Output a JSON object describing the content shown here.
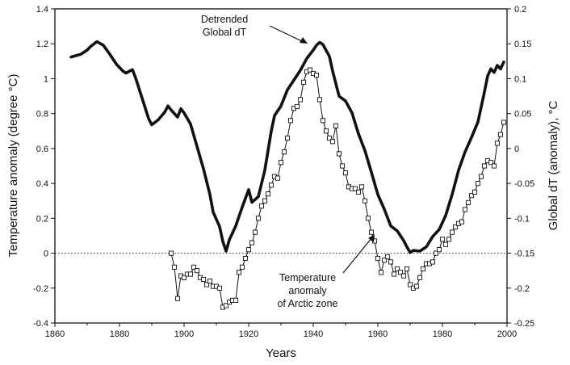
{
  "chart_data": {
    "type": "line",
    "xlabel": "Years",
    "ylabel_left": "Temperature anomaly (degree °C)",
    "ylabel_right": "Global dT (anomaly), °C",
    "xlim": [
      1860,
      2000
    ],
    "ylim_left": [
      -0.4,
      1.4
    ],
    "ylim_right": [
      -0.25,
      0.2
    ],
    "x_ticks": [
      "1860",
      "1880",
      "1900",
      "1920",
      "1940",
      "1960",
      "1980",
      "2000"
    ],
    "y_left_ticks": [
      "1.4",
      "1.2",
      "1",
      "0.8",
      "0.6",
      "0.4",
      "0.2",
      "0",
      "-0.2",
      "-0.4"
    ],
    "y_right_ticks": [
      "0.2",
      "0.15",
      "0.1",
      "0.05",
      "0",
      "-0.05",
      "-0.1",
      "-0.15",
      "-0.2",
      "-0.25"
    ],
    "reference_line": {
      "y": 0,
      "style": "dotted"
    },
    "grid": false,
    "colors": {
      "line": "#111111",
      "reference": "#333333",
      "background": "#ffffff"
    },
    "annotations": [
      {
        "text": [
          "Detrended",
          "Global dT"
        ],
        "points_to_series": 0
      },
      {
        "text": [
          "Temperature",
          "anomaly",
          "of Arctic zone"
        ],
        "points_to_series": 1
      }
    ],
    "series": [
      {
        "axis": "right",
        "style": "thick-line",
        "x": [
          1865,
          1868,
          1870,
          1871,
          1873,
          1875,
          1877,
          1879,
          1881,
          1882,
          1884,
          1885,
          1887,
          1889,
          1890,
          1892,
          1894,
          1895,
          1896,
          1898,
          1899,
          1900,
          1902,
          1904,
          1906,
          1908,
          1909,
          1911,
          1912,
          1913,
          1914,
          1916,
          1918,
          1920,
          1921,
          1923,
          1925,
          1927,
          1928,
          1930,
          1932,
          1934,
          1936,
          1938,
          1940,
          1941,
          1942,
          1943,
          1945,
          1946,
          1948,
          1950,
          1952,
          1954,
          1956,
          1958,
          1960,
          1962,
          1964,
          1966,
          1968,
          1969,
          1970,
          1971,
          1973,
          1975,
          1977,
          1979,
          1981,
          1983,
          1985,
          1987,
          1989,
          1991,
          1993,
          1994,
          1995,
          1996,
          1997,
          1998,
          1999
        ],
        "y": [
          0.131,
          0.135,
          0.141,
          0.146,
          0.153,
          0.148,
          0.135,
          0.121,
          0.111,
          0.108,
          0.113,
          0.101,
          0.072,
          0.043,
          0.034,
          0.041,
          0.052,
          0.061,
          0.055,
          0.045,
          0.057,
          0.051,
          0.035,
          0.003,
          -0.029,
          -0.066,
          -0.091,
          -0.112,
          -0.133,
          -0.147,
          -0.131,
          -0.111,
          -0.084,
          -0.059,
          -0.077,
          -0.069,
          -0.031,
          0.025,
          0.047,
          0.061,
          0.084,
          0.098,
          0.112,
          0.129,
          0.141,
          0.148,
          0.152,
          0.149,
          0.132,
          0.111,
          0.075,
          0.068,
          0.051,
          0.021,
          -0.003,
          -0.034,
          -0.066,
          -0.087,
          -0.111,
          -0.118,
          -0.132,
          -0.141,
          -0.149,
          -0.146,
          -0.147,
          -0.141,
          -0.126,
          -0.116,
          -0.096,
          -0.066,
          -0.031,
          -0.005,
          0.016,
          0.038,
          0.081,
          0.104,
          0.114,
          0.109,
          0.119,
          0.114,
          0.124
        ]
      },
      {
        "axis": "left",
        "style": "line-with-square-markers",
        "x": [
          1896,
          1897,
          1898,
          1899,
          1900,
          1901,
          1902,
          1903,
          1904,
          1905,
          1906,
          1907,
          1908,
          1909,
          1910,
          1911,
          1912,
          1913,
          1914,
          1915,
          1916,
          1917,
          1918,
          1919,
          1920,
          1921,
          1922,
          1923,
          1924,
          1925,
          1926,
          1927,
          1928,
          1929,
          1930,
          1931,
          1932,
          1933,
          1934,
          1935,
          1936,
          1937,
          1938,
          1939,
          1940,
          1941,
          1942,
          1943,
          1944,
          1945,
          1946,
          1947,
          1948,
          1949,
          1950,
          1951,
          1952,
          1953,
          1954,
          1955,
          1956,
          1957,
          1958,
          1959,
          1960,
          1961,
          1962,
          1963,
          1964,
          1965,
          1966,
          1967,
          1968,
          1969,
          1970,
          1971,
          1972,
          1973,
          1974,
          1975,
          1976,
          1977,
          1978,
          1979,
          1980,
          1981,
          1982,
          1983,
          1984,
          1985,
          1986,
          1987,
          1988,
          1989,
          1990,
          1991,
          1992,
          1993,
          1994,
          1995,
          1996,
          1997,
          1998,
          1999
        ],
        "y": [
          0.0,
          -0.08,
          -0.26,
          -0.13,
          -0.14,
          -0.12,
          -0.12,
          -0.08,
          -0.1,
          -0.14,
          -0.15,
          -0.18,
          -0.16,
          -0.19,
          -0.19,
          -0.2,
          -0.31,
          -0.3,
          -0.28,
          -0.27,
          -0.27,
          -0.11,
          -0.08,
          -0.03,
          0.02,
          0.06,
          0.12,
          0.2,
          0.27,
          0.3,
          0.34,
          0.39,
          0.44,
          0.43,
          0.52,
          0.58,
          0.66,
          0.76,
          0.83,
          0.84,
          0.88,
          0.98,
          1.04,
          1.05,
          1.03,
          1.02,
          0.88,
          0.76,
          0.7,
          0.66,
          0.64,
          0.73,
          0.57,
          0.5,
          0.46,
          0.38,
          0.37,
          0.37,
          0.35,
          0.38,
          0.3,
          0.2,
          0.12,
          0.07,
          -0.03,
          -0.11,
          -0.04,
          -0.02,
          -0.05,
          -0.12,
          -0.09,
          -0.11,
          -0.13,
          -0.09,
          -0.18,
          -0.2,
          -0.19,
          -0.14,
          -0.09,
          -0.06,
          -0.06,
          -0.05,
          0.0,
          0.02,
          0.08,
          0.05,
          0.08,
          0.12,
          0.15,
          0.17,
          0.18,
          0.25,
          0.29,
          0.33,
          0.35,
          0.4,
          0.44,
          0.5,
          0.53,
          0.52,
          0.5,
          0.63,
          0.68,
          0.75
        ]
      }
    ]
  }
}
